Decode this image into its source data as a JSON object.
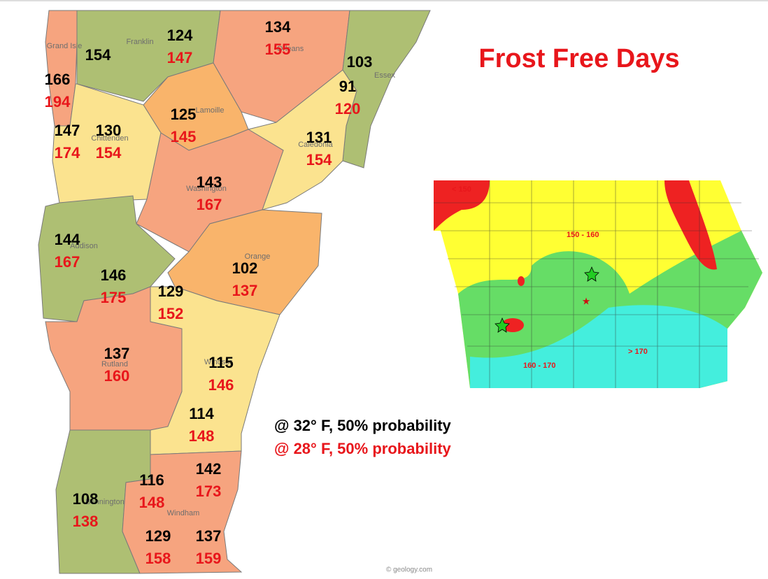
{
  "title": "Frost Free Days",
  "legend": [
    "@ 32° F, 50% probability",
    "@ 28° F, 50% probability"
  ],
  "credit": "© geology.com",
  "counties": [
    "Grand Isle",
    "Franklin",
    "Orleans",
    "Essex",
    "Lamoille",
    "Chittenden",
    "Caledonia",
    "Washington",
    "Addison",
    "Orange",
    "Rutland",
    "Windsor",
    "Windham",
    "Bennington"
  ],
  "stations": [
    {
      "d32": 166,
      "d28": 194
    },
    {
      "d32": 154
    },
    {
      "d32": 124,
      "d28": 147
    },
    {
      "d32": 134,
      "d28": 155
    },
    {
      "d32": 103
    },
    {
      "d32": 91,
      "d28": 120
    },
    {
      "d32": 125,
      "d28": 145
    },
    {
      "d32": 147,
      "d28": 174
    },
    {
      "d32": 130,
      "d28": 154
    },
    {
      "d32": 131,
      "d28": 154
    },
    {
      "d32": 143,
      "d28": 167
    },
    {
      "d32": 144,
      "d28": 167
    },
    {
      "d32": 146,
      "d28": 175
    },
    {
      "d32": 102,
      "d28": 137
    },
    {
      "d32": 129,
      "d28": 152
    },
    {
      "d32": 137,
      "d28": 160
    },
    {
      "d32": 115,
      "d28": 146
    },
    {
      "d32": 114,
      "d28": 148
    },
    {
      "d32": 142,
      "d28": 173
    },
    {
      "d32": 116,
      "d28": 148
    },
    {
      "d32": 108,
      "d28": 138
    },
    {
      "d32": 129,
      "d28": 158
    },
    {
      "d32": 137,
      "d28": 159
    }
  ],
  "iowa": {
    "zones": [
      "< 150",
      "150 - 160",
      "160 - 170",
      "> 170"
    ]
  }
}
